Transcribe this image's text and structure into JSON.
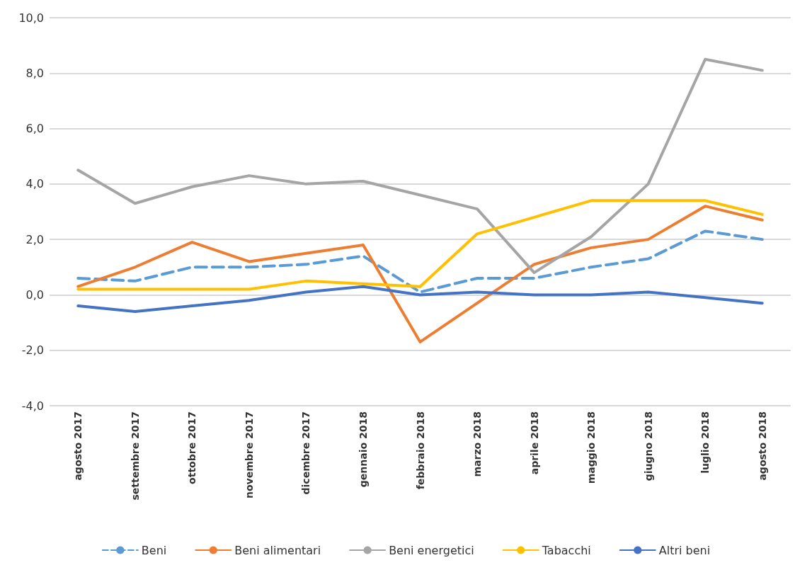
{
  "chart_data": {
    "type": "line",
    "categories": [
      "agosto 2017",
      "settembre 2017",
      "ottobre 2017",
      "novembre 2017",
      "dicembre 2017",
      "gennaio 2018",
      "febbraio 2018",
      "marzo 2018",
      "aprile 2018",
      "maggio 2018",
      "giugno 2018",
      "luglio 2018",
      "agosto 2018"
    ],
    "series": [
      {
        "name": "Beni",
        "color": "#5b9bd5",
        "line_style": "dashed",
        "values": [
          0.6,
          0.5,
          1.0,
          1.0,
          1.1,
          1.4,
          0.1,
          0.6,
          0.6,
          1.0,
          1.3,
          2.3,
          2.0
        ]
      },
      {
        "name": "Beni alimentari",
        "color": "#ed7d31",
        "line_style": "solid",
        "values": [
          0.3,
          1.0,
          1.9,
          1.2,
          1.5,
          1.8,
          -1.7,
          -0.3,
          1.1,
          1.7,
          2.0,
          3.2,
          2.7
        ]
      },
      {
        "name": "Beni energetici",
        "color": "#a5a5a5",
        "line_style": "solid",
        "values": [
          4.5,
          3.3,
          3.9,
          4.3,
          4.0,
          4.1,
          3.6,
          3.1,
          0.8,
          2.1,
          4.0,
          8.5,
          8.1
        ]
      },
      {
        "name": "Tabacchi",
        "color": "#ffc000",
        "line_style": "solid",
        "values": [
          0.2,
          0.2,
          0.2,
          0.2,
          0.5,
          0.4,
          0.3,
          2.2,
          2.8,
          3.4,
          3.4,
          3.4,
          2.9
        ]
      },
      {
        "name": "Altri beni",
        "color": "#4472c4",
        "line_style": "solid",
        "values": [
          -0.4,
          -0.6,
          -0.4,
          -0.2,
          0.1,
          0.3,
          0.0,
          0.1,
          0.0,
          0.0,
          0.1,
          -0.1,
          -0.3
        ]
      }
    ],
    "ylim": [
      -4,
      10
    ],
    "yticks": [
      {
        "value": -4,
        "label": "-4,0"
      },
      {
        "value": -2,
        "label": "-2,0"
      },
      {
        "value": 0,
        "label": "0,0"
      },
      {
        "value": 2,
        "label": "2,0"
      },
      {
        "value": 4,
        "label": "4,0"
      },
      {
        "value": 6,
        "label": "6,0"
      },
      {
        "value": 8,
        "label": "8,0"
      },
      {
        "value": 10,
        "label": "10,0"
      }
    ],
    "grid": "y",
    "legend": "bottom",
    "marker": "none"
  }
}
